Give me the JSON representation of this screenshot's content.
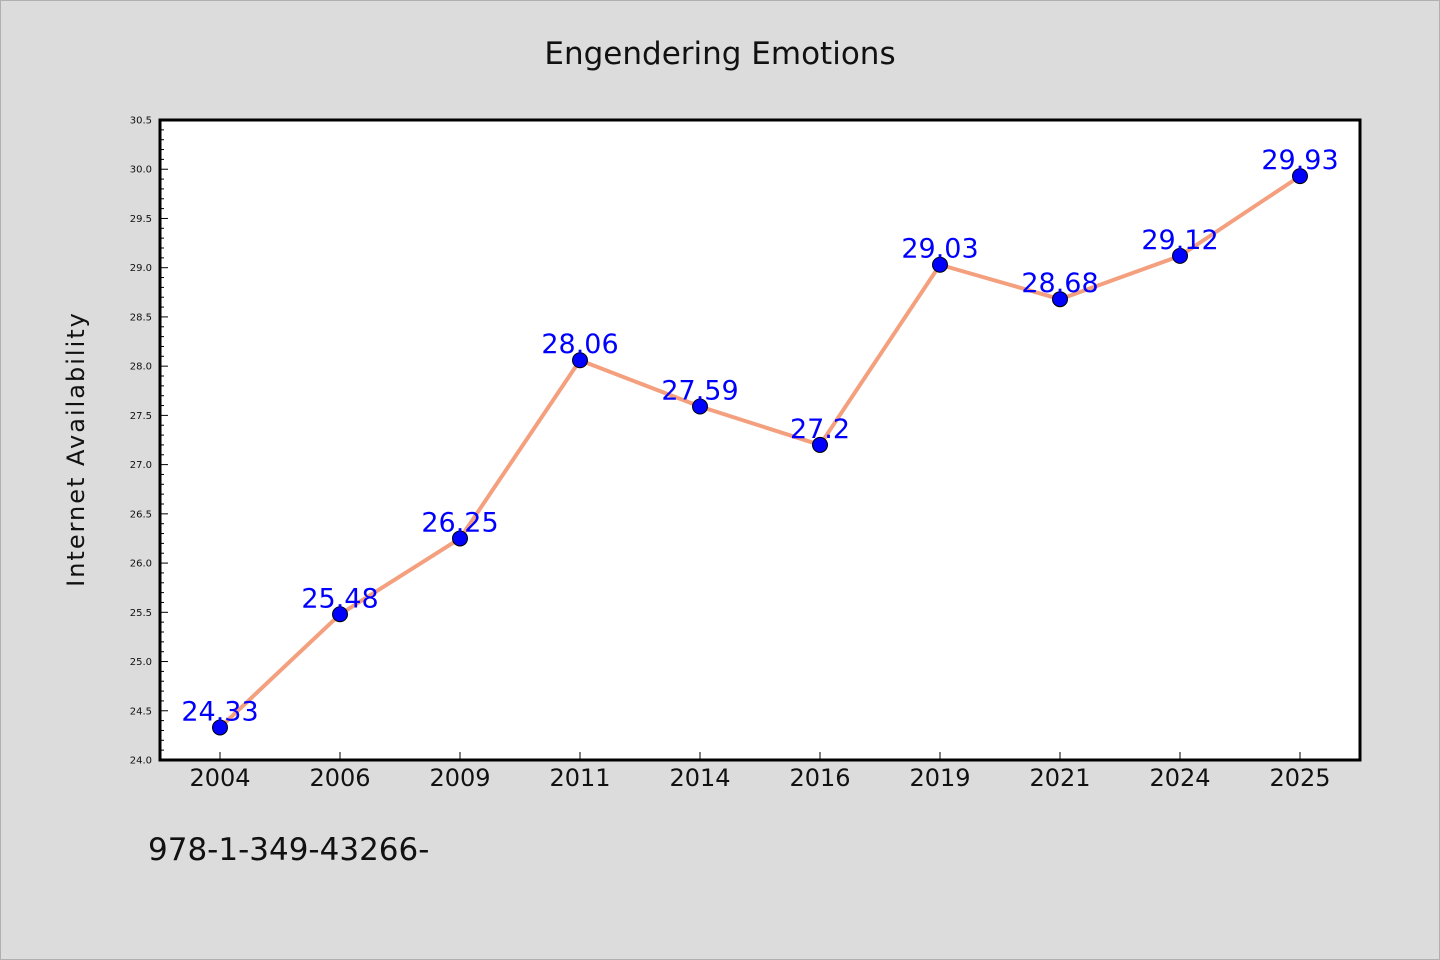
{
  "chart_data": {
    "type": "line",
    "title": "Engendering Emotions",
    "xlabel": "",
    "ylabel": "Internet Availability",
    "categories": [
      "2004",
      "2006",
      "2009",
      "2011",
      "2014",
      "2016",
      "2019",
      "2021",
      "2024",
      "2025"
    ],
    "series": [
      {
        "values": [
          24.33,
          25.48,
          26.25,
          28.06,
          27.59,
          27.2,
          29.03,
          28.68,
          29.12,
          29.93
        ],
        "labels": [
          "24.33",
          "25.48",
          "26.25",
          "28.06",
          "27.59",
          "27.2",
          "29.03",
          "28.68",
          "29.12",
          "29.93"
        ],
        "line_color": "#f4a07f",
        "marker_color": "#0000ff",
        "label_color": "#0000ff"
      }
    ],
    "ylim": [
      24.0,
      30.5
    ],
    "yticks": [
      "24.0",
      "24.5",
      "25.0",
      "25.5",
      "26.0",
      "26.5",
      "27.0",
      "27.5",
      "28.0",
      "28.5",
      "29.0",
      "29.5",
      "30.0",
      "30.5"
    ],
    "grid": false,
    "legend": "none"
  },
  "footer": {
    "text": "978-1-349-43266-"
  },
  "colors": {
    "page_background": "#dcdcdc",
    "plot_background": "#ffffff",
    "axis": "#000000"
  }
}
